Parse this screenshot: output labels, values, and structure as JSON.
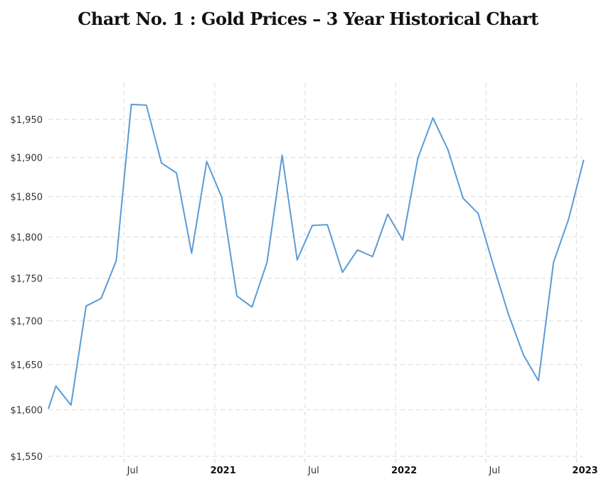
{
  "chart_data": {
    "type": "line",
    "title": "Chart No. 1 : Gold Prices – 3 Year Historical Chart",
    "xlabel": "",
    "ylabel": "",
    "grid": true,
    "y_scale": "log",
    "ylim": [
      1550,
      2005
    ],
    "y_ticks": [
      1550,
      1600,
      1650,
      1700,
      1750,
      1800,
      1850,
      1900,
      1950
    ],
    "y_tick_labels": [
      "$1,550",
      "$1,600",
      "$1,650",
      "$1,700",
      "$1,750",
      "$1,800",
      "$1,850",
      "$1,900",
      "$1,950"
    ],
    "x_ticks": [
      {
        "label": "Jul",
        "month_index": 5,
        "bold": false
      },
      {
        "label": "2021",
        "month_index": 11,
        "bold": true
      },
      {
        "label": "Jul",
        "month_index": 17,
        "bold": false
      },
      {
        "label": "2022",
        "month_index": 23,
        "bold": true
      },
      {
        "label": "Jul",
        "month_index": 29,
        "bold": false
      },
      {
        "label": "2023",
        "month_index": 35,
        "bold": true
      }
    ],
    "series": [
      {
        "name": "Gold Price",
        "color": "#5b9bd5",
        "x": [
          0,
          0.5,
          1.5,
          2.5,
          3.5,
          4.5,
          5.5,
          6.5,
          7.5,
          8.5,
          9.5,
          10.5,
          11.5,
          12.5,
          13.5,
          14.5,
          15.5,
          16.5,
          17.5,
          18.5,
          19.5,
          20.5,
          21.5,
          22.5,
          23.5,
          24.5,
          25.5,
          26.5,
          27.5,
          28.5,
          29.5,
          30.5,
          31.5,
          32.5,
          33.5,
          34.5,
          35.5
        ],
        "values": [
          1601,
          1626,
          1605,
          1717,
          1726,
          1771,
          1970,
          1969,
          1893,
          1880,
          1780,
          1895,
          1849,
          1729,
          1716,
          1769,
          1903,
          1772,
          1814,
          1815,
          1757,
          1784,
          1776,
          1828,
          1796,
          1899,
          1952,
          1910,
          1848,
          1829,
          1766,
          1708,
          1661,
          1632,
          1769,
          1822,
          1897
        ]
      }
    ]
  }
}
